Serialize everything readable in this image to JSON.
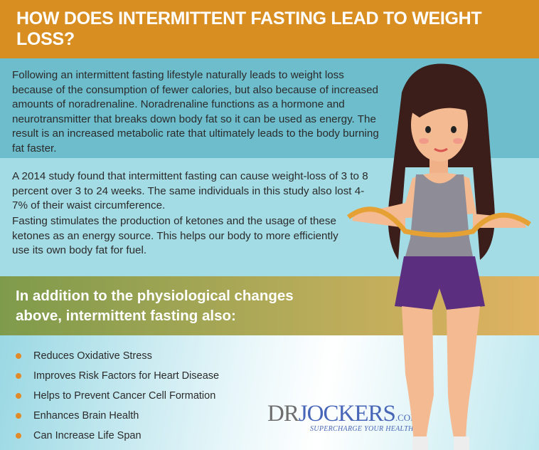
{
  "header": {
    "title": "HOW DOES INTERMITTENT FASTING LEAD TO WEIGHT LOSS?"
  },
  "section1": {
    "text": "Following an intermittent fasting lifestyle naturally leads to weight loss because of the consumption of fewer calories, but also because of increased amounts of noradrenaline. Noradrenaline functions as a hormone and neurotransmitter that breaks down body fat so it can be used as energy. The result is an increased metabolic rate that ultimately leads to the body burning fat faster."
  },
  "section2": {
    "para1": "A 2014 study found that intermittent fasting can cause weight-loss of 3 to 8 percent over 3 to 24 weeks. The same individuals in this study also lost 4-7% of their waist circumference.",
    "para2": "Fasting stimulates the production of ketones and the usage of these ketones as an energy source.  This helps our body to more efficiently use its own body fat for fuel."
  },
  "band": {
    "title": "In addition to the physiological changes above, intermittent fasting also:"
  },
  "benefits": [
    "Reduces Oxidative Stress",
    "Improves Risk Factors for Heart Disease",
    "Helps to Prevent Cancer Cell Formation",
    "Enhances Brain Health",
    "Can Increase Life Span"
  ],
  "logo": {
    "dr": "DR",
    "jockers": "JOCKERS",
    "com": ".COM",
    "tagline": "SUPERCHARGE YOUR HEALTH"
  },
  "colors": {
    "header": "#D98E22",
    "section1": "#6DBDCC",
    "section2": "#A4DCE5",
    "bullet": "#E18A2A",
    "brand": "#4866B8"
  }
}
